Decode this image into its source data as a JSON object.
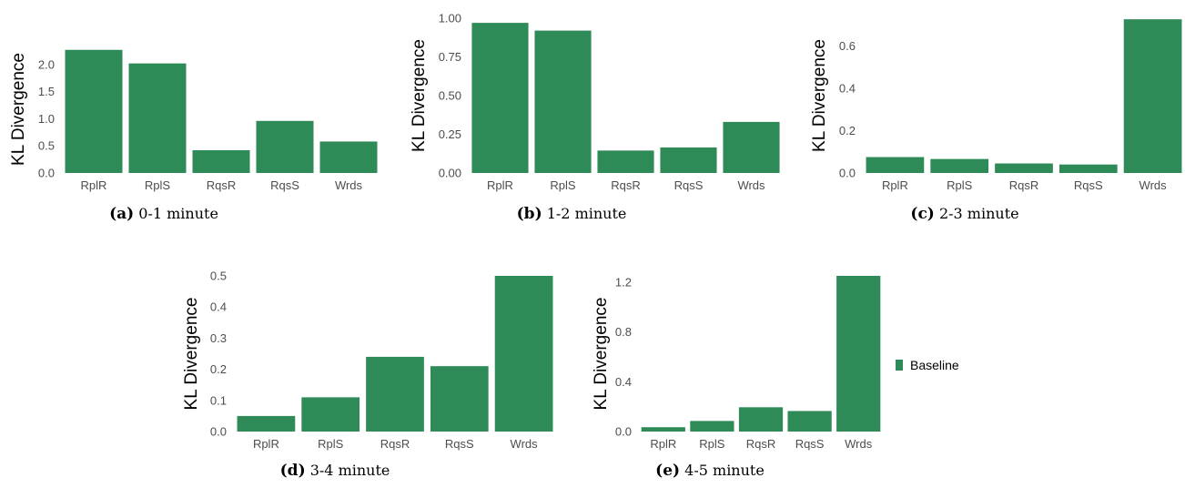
{
  "chart_data": [
    {
      "type": "bar",
      "categories": [
        "RplR",
        "RplS",
        "RqsR",
        "RqsS",
        "Wrds"
      ],
      "series": [
        {
          "name": "Baseline",
          "values": [
            2.27,
            2.02,
            0.42,
            0.96,
            0.58
          ]
        }
      ],
      "ylabel": "KL Divergence",
      "yticks": [
        "0.0",
        "0.5",
        "1.0",
        "1.5",
        "2.0"
      ],
      "ylim": [
        0,
        2.35
      ],
      "caption_label": "(a)",
      "caption_text": "0-1 minute"
    },
    {
      "type": "bar",
      "categories": [
        "RplR",
        "RplS",
        "RqsR",
        "RqsS",
        "Wrds"
      ],
      "series": [
        {
          "name": "Baseline",
          "values": [
            0.97,
            0.92,
            0.145,
            0.165,
            0.33
          ]
        }
      ],
      "ylabel": "KL Divergence",
      "yticks": [
        "0.00",
        "0.25",
        "0.50",
        "0.75",
        "1.00"
      ],
      "ylim": [
        0,
        1.0
      ],
      "caption_label": "(b)",
      "caption_text": "1-2 minute"
    },
    {
      "type": "bar",
      "categories": [
        "RplR",
        "RplS",
        "RqsR",
        "RqsS",
        "Wrds"
      ],
      "series": [
        {
          "name": "Baseline",
          "values": [
            0.075,
            0.066,
            0.045,
            0.04,
            0.725
          ]
        }
      ],
      "ylabel": "KL Divergence",
      "yticks": [
        "0.0",
        "0.2",
        "0.4",
        "0.6"
      ],
      "ylim": [
        0,
        0.73
      ],
      "caption_label": "(c)",
      "caption_text": "2-3 minute"
    },
    {
      "type": "bar",
      "categories": [
        "RplR",
        "RplS",
        "RqsR",
        "RqsS",
        "Wrds"
      ],
      "series": [
        {
          "name": "Baseline",
          "values": [
            0.05,
            0.11,
            0.24,
            0.21,
            0.5
          ]
        }
      ],
      "ylabel": "KL Divergence",
      "yticks": [
        "0.0",
        "0.1",
        "0.2",
        "0.3",
        "0.4",
        "0.5"
      ],
      "ylim": [
        0,
        0.5
      ],
      "caption_label": "(d)",
      "caption_text": "3-4 minute"
    },
    {
      "type": "bar",
      "categories": [
        "RplR",
        "RplS",
        "RqsR",
        "RqsS",
        "Wrds"
      ],
      "series": [
        {
          "name": "Baseline",
          "values": [
            0.035,
            0.085,
            0.195,
            0.165,
            1.25
          ]
        }
      ],
      "ylabel": "KL Divergence",
      "yticks": [
        "0.0",
        "0.4",
        "0.8",
        "1.2"
      ],
      "ylim": [
        0,
        1.25
      ],
      "caption_label": "(e)",
      "caption_text": "4-5 minute"
    }
  ],
  "legend": {
    "label": "Baseline",
    "position": "right"
  },
  "colors": {
    "bar": "#2e8b57",
    "tick_text": "#4d4d4d"
  }
}
